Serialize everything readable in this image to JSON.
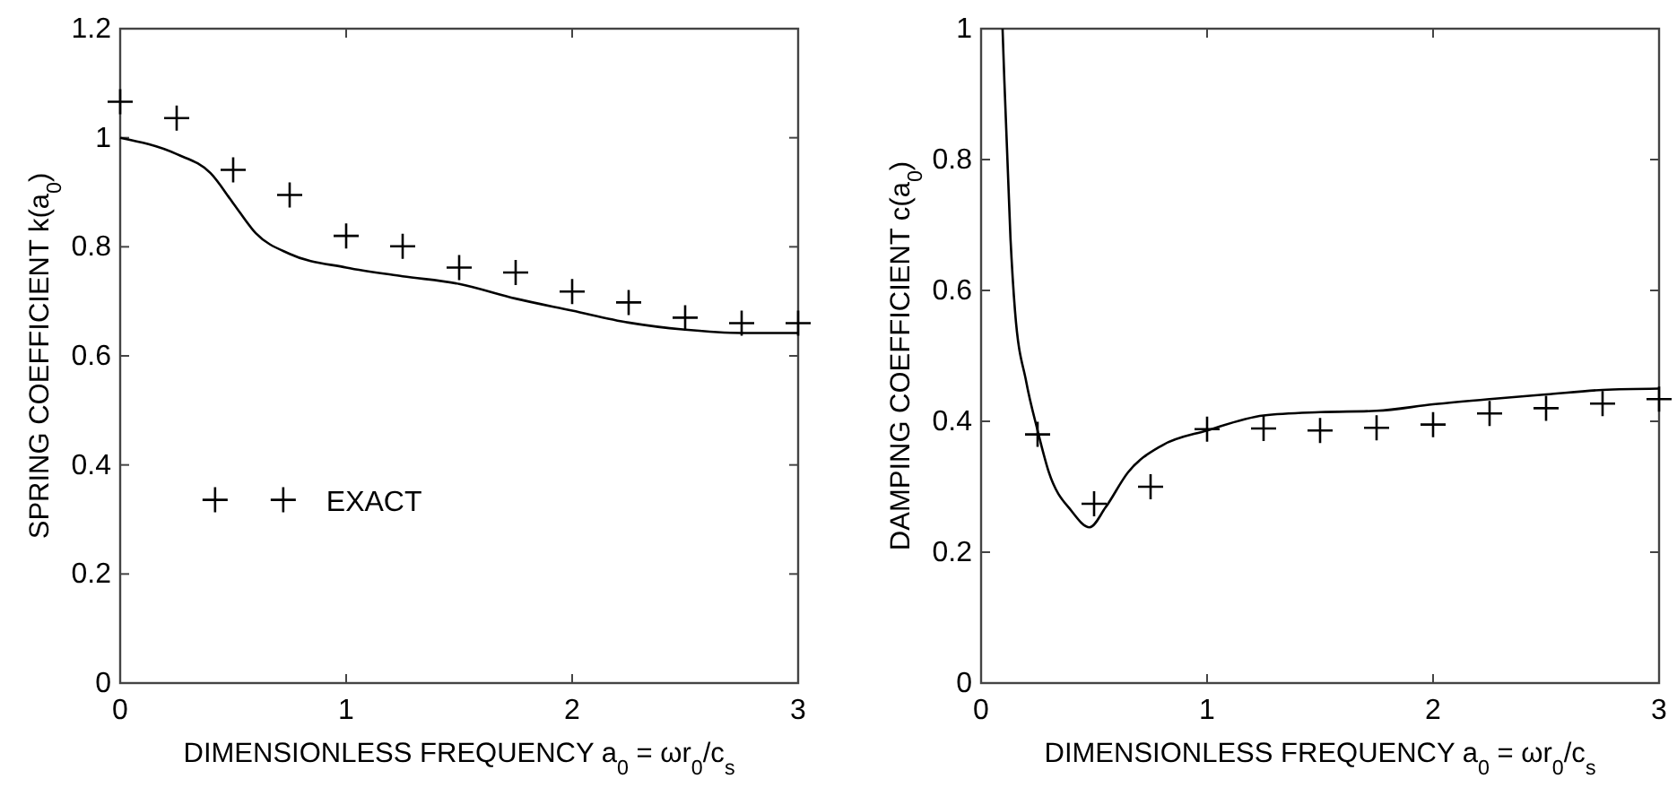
{
  "chart_data": [
    {
      "type": "line",
      "xlabel": "DIMENSIONLESS FREQUENCY a$_{0}$ = ωr$_{0}$/c$_{s}$",
      "ylabel": "SPRING COEFFICIENT k(a$_{0}$)",
      "xlim": [
        0,
        3
      ],
      "ylim": [
        0,
        1.2
      ],
      "xticks": [
        0,
        1,
        2,
        3
      ],
      "yticks": [
        0,
        0.2,
        0.4,
        0.6,
        0.8,
        1,
        1.2
      ],
      "legend": "left",
      "series": [
        {
          "type": "line",
          "color": "#000000",
          "line_style": "solid",
          "x": [
            0,
            0.25,
            0.4,
            0.5,
            0.6,
            0.75,
            1,
            1.25,
            1.5,
            1.75,
            2,
            2.25,
            2.5,
            2.75,
            3
          ],
          "values": [
            1.0,
            0.97,
            0.935,
            0.88,
            0.825,
            0.787,
            0.762,
            0.746,
            0.732,
            0.705,
            0.683,
            0.661,
            0.648,
            0.642,
            0.642
          ]
        },
        {
          "type": "scatter",
          "name": "EXACT",
          "color": "#000000",
          "marker": "cross",
          "x": [
            0,
            0.25,
            0.5,
            0.75,
            1,
            1.25,
            1.5,
            1.75,
            2,
            2.25,
            2.5,
            2.75,
            3
          ],
          "values": [
            1.066,
            1.036,
            0.941,
            0.895,
            0.82,
            0.801,
            0.762,
            0.753,
            0.718,
            0.698,
            0.67,
            0.66,
            0.66
          ]
        }
      ]
    },
    {
      "type": "line",
      "xlabel": "DIMENSIONLESS FREQUENCY a$_{0}$ = ωr$_{0}$/c$_{s}$",
      "ylabel": "DAMPING COEFFICIENT c(a$_{0}$)",
      "xlim": [
        0,
        3
      ],
      "ylim": [
        0,
        1
      ],
      "xticks": [
        0,
        1,
        2,
        3
      ],
      "yticks": [
        0,
        0.2,
        0.4,
        0.6,
        0.8,
        1
      ],
      "series": [
        {
          "type": "line",
          "color": "#000000",
          "line_style": "solid",
          "x": [
            0.095,
            0.1,
            0.13,
            0.15,
            0.2,
            0.25,
            0.3,
            0.4,
            0.48,
            0.55,
            0.65,
            0.8,
            1,
            1.25,
            1.5,
            1.75,
            2,
            2.25,
            2.5,
            2.75,
            3
          ],
          "values": [
            1.0,
            0.95,
            0.68,
            0.569,
            0.46,
            0.386,
            0.322,
            0.263,
            0.238,
            0.268,
            0.322,
            0.363,
            0.386,
            0.409,
            0.414,
            0.416,
            0.426,
            0.434,
            0.441,
            0.448,
            0.45
          ]
        },
        {
          "type": "scatter",
          "color": "#000000",
          "marker": "cross",
          "x": [
            0.25,
            0.5,
            0.75,
            1,
            1.25,
            1.5,
            1.75,
            2,
            2.25,
            2.5,
            2.75,
            3
          ],
          "values": [
            0.38,
            0.274,
            0.3,
            0.388,
            0.389,
            0.386,
            0.39,
            0.395,
            0.412,
            0.42,
            0.427,
            0.434
          ]
        }
      ]
    }
  ]
}
